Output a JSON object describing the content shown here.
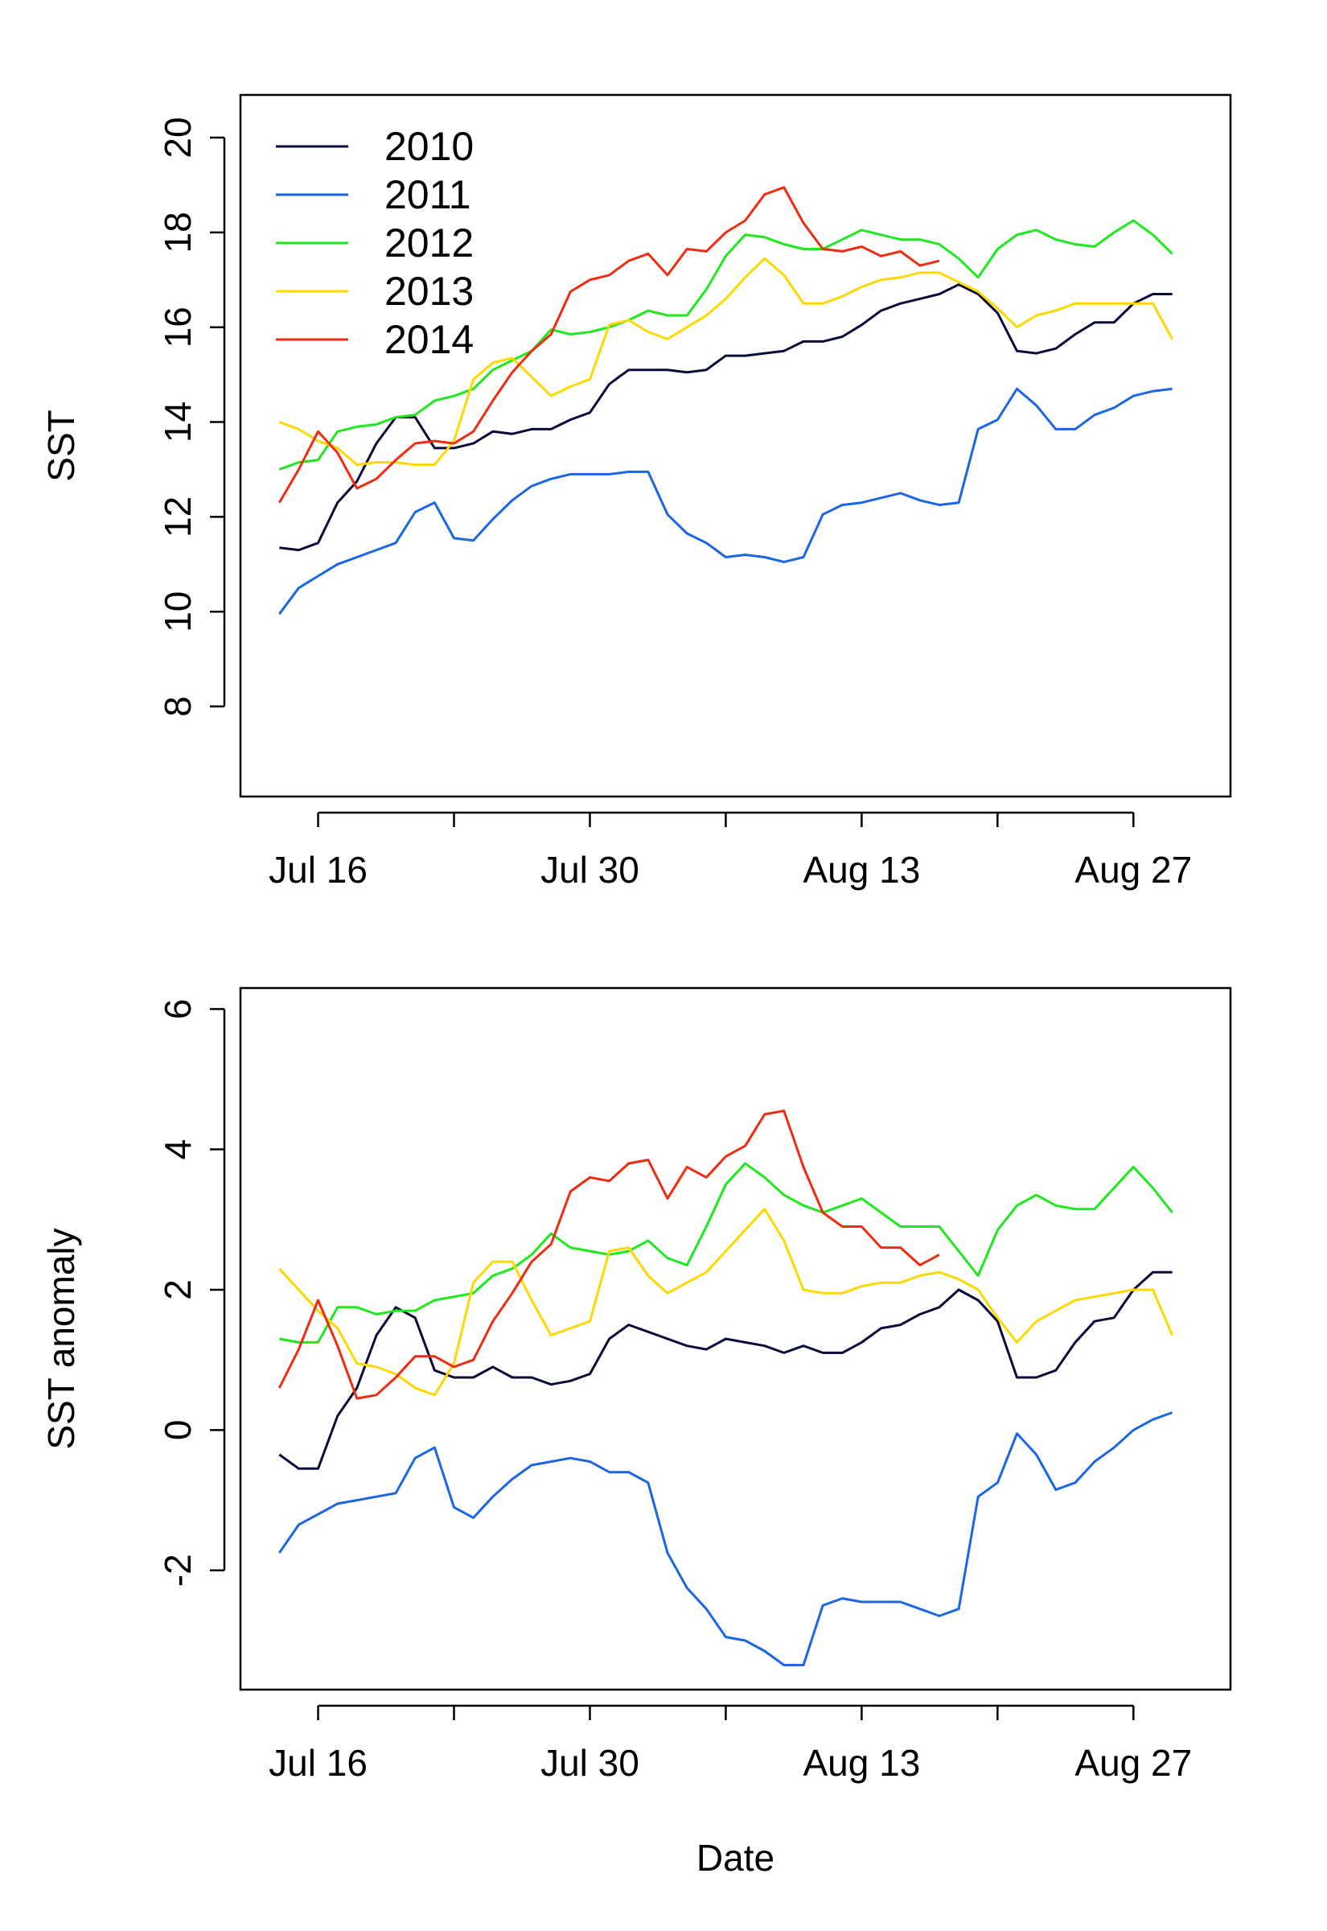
{
  "chart_data": [
    {
      "type": "line",
      "ylabel": "SST",
      "xlabel": "",
      "x_start": "2000-07-14",
      "x_end": "2000-08-30",
      "xlim": [
        "2000-07-12",
        "2000-09-01"
      ],
      "x_ticks": [
        "2000-07-16",
        "2000-07-23",
        "2000-07-30",
        "2000-08-06",
        "2000-08-13",
        "2000-08-20",
        "2000-08-27"
      ],
      "x_tick_labels": [
        "Jul 16",
        "",
        "Jul 30",
        "",
        "Aug 13",
        "",
        "Aug 27"
      ],
      "ylim": [
        6.1,
        20.9
      ],
      "y_ticks": [
        8,
        10,
        12,
        14,
        16,
        18,
        20
      ],
      "y_tick_labels": [
        "8",
        "10",
        "12",
        "14",
        "16",
        "18",
        "20"
      ],
      "legend": {
        "position": "top-left",
        "entries": [
          {
            "label": "2010",
            "color": "#0b0b3b"
          },
          {
            "label": "2011",
            "color": "#1a66e6"
          },
          {
            "label": "2012",
            "color": "#1ee81e"
          },
          {
            "label": "2013",
            "color": "#ffd800"
          },
          {
            "label": "2014",
            "color": "#f02b10"
          }
        ]
      },
      "series": [
        {
          "name": "2010",
          "color": "#0b0b3b",
          "values": [
            11.35,
            11.3,
            11.45,
            12.3,
            12.75,
            13.55,
            14.1,
            14.1,
            13.45,
            13.45,
            13.55,
            13.8,
            13.75,
            13.85,
            13.85,
            14.05,
            14.2,
            14.8,
            15.1,
            15.1,
            15.1,
            15.05,
            15.1,
            15.4,
            15.4,
            15.45,
            15.5,
            15.7,
            15.7,
            15.8,
            16.05,
            16.35,
            16.5,
            16.6,
            16.7,
            16.9,
            16.7,
            16.3,
            15.5,
            15.45,
            15.55,
            15.85,
            16.1,
            16.1,
            16.5,
            16.7,
            16.7
          ]
        },
        {
          "name": "2011",
          "color": "#1a66e6",
          "values": [
            9.95,
            10.5,
            10.75,
            11.0,
            11.15,
            11.3,
            11.45,
            12.1,
            12.3,
            11.55,
            11.5,
            11.95,
            12.35,
            12.65,
            12.8,
            12.9,
            12.9,
            12.9,
            12.95,
            12.95,
            12.05,
            11.65,
            11.45,
            11.15,
            11.2,
            11.15,
            11.05,
            11.15,
            12.05,
            12.25,
            12.3,
            12.4,
            12.5,
            12.35,
            12.25,
            12.3,
            13.85,
            14.05,
            14.7,
            14.35,
            13.85,
            13.85,
            14.15,
            14.3,
            14.55,
            14.65,
            14.7
          ]
        },
        {
          "name": "2012",
          "color": "#1ee81e",
          "values": [
            13.0,
            13.15,
            13.2,
            13.8,
            13.9,
            13.95,
            14.1,
            14.15,
            14.45,
            14.55,
            14.7,
            15.1,
            15.3,
            15.5,
            15.95,
            15.85,
            15.9,
            16.0,
            16.15,
            16.35,
            16.25,
            16.25,
            16.8,
            17.5,
            17.95,
            17.9,
            17.75,
            17.65,
            17.65,
            17.85,
            18.05,
            17.95,
            17.85,
            17.85,
            17.75,
            17.45,
            17.05,
            17.65,
            17.95,
            18.05,
            17.85,
            17.75,
            17.7,
            18.0,
            18.25,
            17.95,
            17.55
          ]
        },
        {
          "name": "2013",
          "color": "#ffd800",
          "values": [
            14.0,
            13.85,
            13.6,
            13.45,
            13.1,
            13.15,
            13.15,
            13.1,
            13.1,
            13.6,
            14.9,
            15.25,
            15.35,
            14.95,
            14.55,
            14.75,
            14.9,
            16.05,
            16.15,
            15.9,
            15.75,
            16.0,
            16.25,
            16.6,
            17.05,
            17.45,
            17.1,
            16.5,
            16.5,
            16.65,
            16.85,
            17.0,
            17.05,
            17.15,
            17.15,
            16.95,
            16.75,
            16.4,
            16.0,
            16.25,
            16.35,
            16.5,
            16.5,
            16.5,
            16.5,
            16.5,
            15.75
          ]
        },
        {
          "name": "2014",
          "color": "#f02b10",
          "values": [
            12.3,
            13.0,
            13.8,
            13.35,
            12.6,
            12.8,
            13.2,
            13.55,
            13.6,
            13.55,
            13.8,
            14.45,
            15.05,
            15.5,
            15.85,
            16.75,
            17.0,
            17.1,
            17.4,
            17.55,
            17.1,
            17.65,
            17.6,
            18.0,
            18.25,
            18.8,
            18.95,
            18.2,
            17.65,
            17.6,
            17.7,
            17.5,
            17.6,
            17.3,
            17.4,
            null,
            null,
            null,
            null,
            null,
            null,
            null,
            null,
            null,
            null,
            null,
            null
          ]
        }
      ]
    },
    {
      "type": "line",
      "ylabel": "SST anomaly",
      "xlabel": "Date",
      "x_start": "2000-07-14",
      "x_end": "2000-08-30",
      "xlim": [
        "2000-07-12",
        "2000-09-01"
      ],
      "x_ticks": [
        "2000-07-16",
        "2000-07-23",
        "2000-07-30",
        "2000-08-06",
        "2000-08-13",
        "2000-08-20",
        "2000-08-27"
      ],
      "x_tick_labels": [
        "Jul 16",
        "",
        "Jul 30",
        "",
        "Aug 13",
        "",
        "Aug 27"
      ],
      "ylim": [
        -3.7,
        6.3
      ],
      "y_ticks": [
        -2,
        0,
        2,
        4,
        6
      ],
      "y_tick_labels": [
        "-2",
        "0",
        "2",
        "4",
        "6"
      ],
      "series": [
        {
          "name": "2010",
          "color": "#0b0b3b",
          "values": [
            -0.35,
            -0.55,
            -0.55,
            0.2,
            0.6,
            1.35,
            1.75,
            1.6,
            0.85,
            0.75,
            0.75,
            0.9,
            0.75,
            0.75,
            0.65,
            0.7,
            0.8,
            1.3,
            1.5,
            1.4,
            1.3,
            1.2,
            1.15,
            1.3,
            1.25,
            1.2,
            1.1,
            1.2,
            1.1,
            1.1,
            1.25,
            1.45,
            1.5,
            1.65,
            1.75,
            2.0,
            1.85,
            1.55,
            0.75,
            0.75,
            0.85,
            1.25,
            1.55,
            1.6,
            2.0,
            2.25,
            2.25
          ]
        },
        {
          "name": "2011",
          "color": "#1a66e6",
          "values": [
            -1.75,
            -1.35,
            -1.2,
            -1.05,
            -1.0,
            -0.95,
            -0.9,
            -0.4,
            -0.25,
            -1.1,
            -1.25,
            -0.95,
            -0.7,
            -0.5,
            -0.45,
            -0.4,
            -0.45,
            -0.6,
            -0.6,
            -0.75,
            -1.75,
            -2.25,
            -2.55,
            -2.95,
            -3.0,
            -3.15,
            -3.35,
            -3.35,
            -2.5,
            -2.4,
            -2.45,
            -2.45,
            -2.45,
            -2.55,
            -2.65,
            -2.55,
            -0.95,
            -0.75,
            -0.05,
            -0.35,
            -0.85,
            -0.75,
            -0.45,
            -0.25,
            0.0,
            0.15,
            0.25
          ]
        },
        {
          "name": "2012",
          "color": "#1ee81e",
          "values": [
            1.3,
            1.25,
            1.25,
            1.75,
            1.75,
            1.65,
            1.7,
            1.7,
            1.85,
            1.9,
            1.95,
            2.2,
            2.3,
            2.5,
            2.8,
            2.6,
            2.55,
            2.5,
            2.55,
            2.7,
            2.45,
            2.35,
            2.9,
            3.5,
            3.8,
            3.6,
            3.35,
            3.2,
            3.1,
            3.2,
            3.3,
            3.1,
            2.9,
            2.9,
            2.9,
            2.55,
            2.2,
            2.85,
            3.2,
            3.35,
            3.2,
            3.15,
            3.15,
            3.45,
            3.75,
            3.45,
            3.1
          ]
        },
        {
          "name": "2013",
          "color": "#ffd800",
          "values": [
            2.3,
            2.0,
            1.7,
            1.45,
            0.95,
            0.9,
            0.8,
            0.6,
            0.5,
            0.95,
            2.1,
            2.4,
            2.4,
            1.85,
            1.35,
            1.45,
            1.55,
            2.55,
            2.6,
            2.2,
            1.95,
            2.1,
            2.25,
            2.55,
            2.85,
            3.15,
            2.7,
            2.0,
            1.95,
            1.95,
            2.05,
            2.1,
            2.1,
            2.2,
            2.25,
            2.15,
            2.0,
            1.6,
            1.25,
            1.55,
            1.7,
            1.85,
            1.9,
            1.95,
            2.0,
            2.0,
            1.35
          ]
        },
        {
          "name": "2014",
          "color": "#f02b10",
          "values": [
            0.6,
            1.15,
            1.85,
            1.2,
            0.45,
            0.5,
            0.75,
            1.05,
            1.05,
            0.9,
            1.0,
            1.55,
            1.95,
            2.4,
            2.65,
            3.4,
            3.6,
            3.55,
            3.8,
            3.85,
            3.3,
            3.75,
            3.6,
            3.9,
            4.05,
            4.5,
            4.55,
            3.75,
            3.1,
            2.9,
            2.9,
            2.6,
            2.6,
            2.35,
            2.5,
            null,
            null,
            null,
            null,
            null,
            null,
            null,
            null,
            null,
            null,
            null,
            null
          ]
        }
      ]
    }
  ]
}
